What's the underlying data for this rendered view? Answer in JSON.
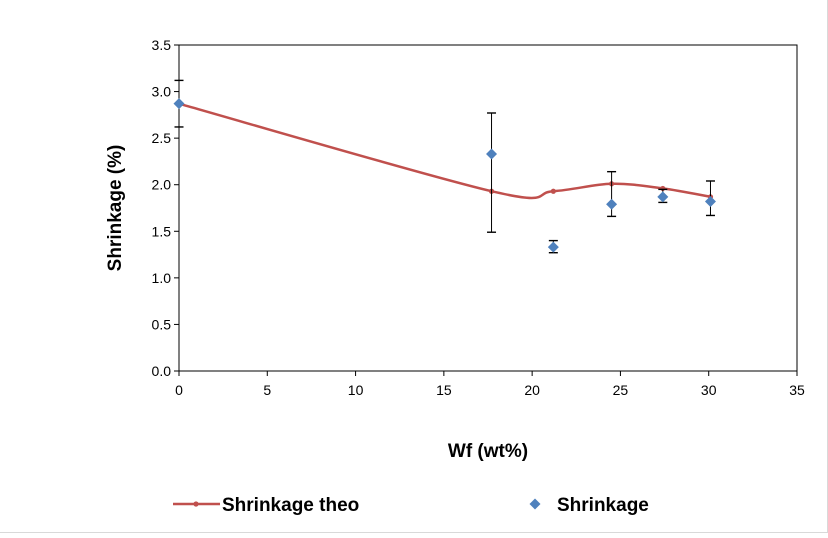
{
  "chart_data": {
    "type": "scatter",
    "title": "",
    "xlabel": "Wf (wt%)",
    "ylabel": "Shrinkage (%)",
    "xlim": [
      0,
      35
    ],
    "ylim": [
      0,
      3.5
    ],
    "x_ticks": [
      0,
      5,
      10,
      15,
      20,
      25,
      30,
      35
    ],
    "y_ticks": [
      0.0,
      0.5,
      1.0,
      1.5,
      2.0,
      2.5,
      3.0,
      3.5
    ],
    "x_tick_labels": [
      "0",
      "5",
      "10",
      "15",
      "20",
      "25",
      "30",
      "35"
    ],
    "y_tick_labels": [
      "0.0",
      "0.5",
      "1.0",
      "1.5",
      "2.0",
      "2.5",
      "3.0",
      "3.5"
    ],
    "grid": false,
    "legend_position": "bottom",
    "series": [
      {
        "name": "Shrinkage theo",
        "kind": "smooth-line",
        "color": "#C0504D",
        "marker": "circle",
        "x": [
          0,
          17.7,
          21.2,
          24.5,
          27.4,
          30.1
        ],
        "y": [
          2.87,
          1.93,
          1.93,
          2.01,
          1.96,
          1.87
        ]
      },
      {
        "name": "Shrinkage",
        "kind": "scatter",
        "color": "#4F81BD",
        "marker": "diamond",
        "x": [
          0,
          17.7,
          21.2,
          24.5,
          27.4,
          30.1
        ],
        "y": [
          2.87,
          2.33,
          1.33,
          1.79,
          1.87,
          1.82
        ],
        "error_low": [
          2.62,
          1.49,
          1.27,
          1.66,
          1.81,
          1.67
        ],
        "error_high": [
          3.12,
          2.77,
          1.4,
          2.14,
          1.95,
          2.04
        ]
      }
    ]
  }
}
